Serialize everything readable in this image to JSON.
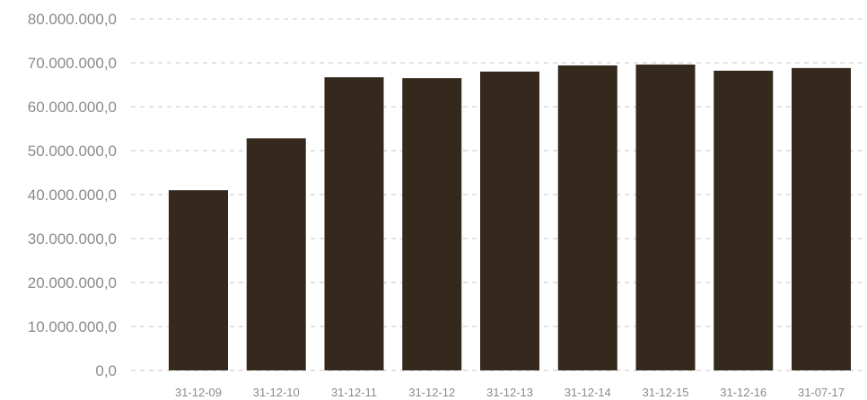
{
  "chart_data": {
    "type": "bar",
    "title": "",
    "xlabel": "",
    "ylabel": "",
    "categories": [
      "31-12-09",
      "31-12-10",
      "31-12-11",
      "31-12-12",
      "31-12-13",
      "31-12-14",
      "31-12-15",
      "31-12-16",
      "31-07-17"
    ],
    "values": [
      41000000,
      52800000,
      66700000,
      66500000,
      68000000,
      69400000,
      69600000,
      68200000,
      68800000
    ],
    "ylim": [
      0,
      80000000
    ],
    "yticks": [
      0,
      10000000,
      20000000,
      30000000,
      40000000,
      50000000,
      60000000,
      70000000,
      80000000
    ],
    "ytick_labels": [
      "0,0",
      "10.000.000,0",
      "20.000.000,0",
      "30.000.000,0",
      "40.000.000,0",
      "50.000.000,0",
      "60.000.000,0",
      "70.000.000,0",
      "80.000.000,0"
    ],
    "grid": true,
    "grid_style": "dashed",
    "legend": "none",
    "colors": {
      "bar": "#35281c",
      "grid": "#c4c4c4",
      "tick_text": "#8a8a8a"
    }
  }
}
